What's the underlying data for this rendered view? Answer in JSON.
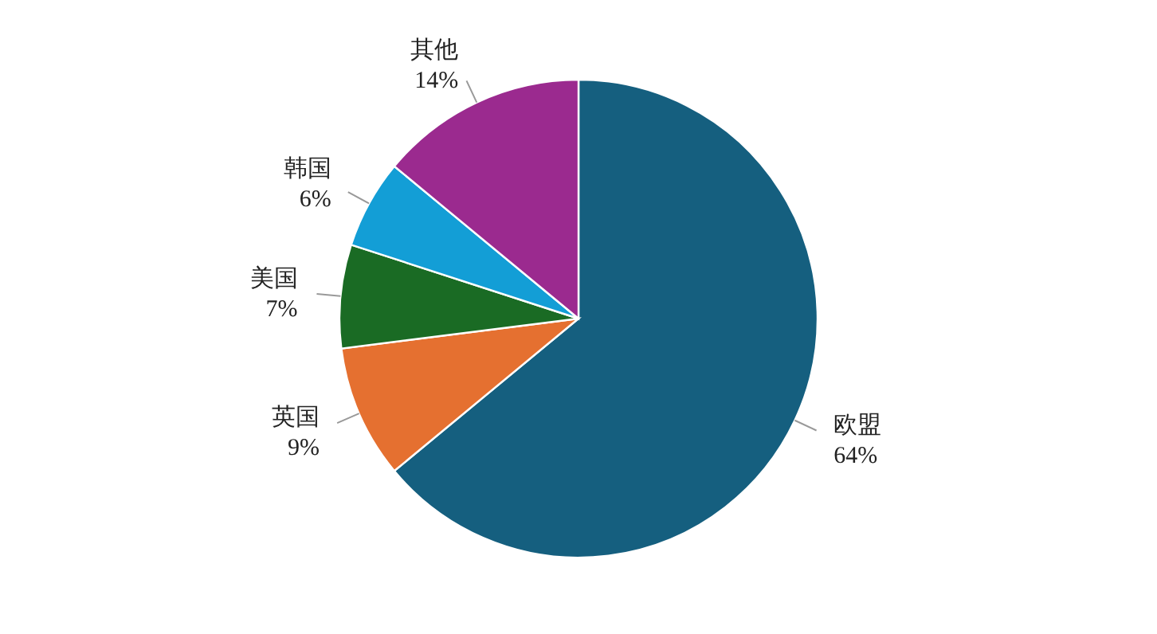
{
  "chart_data": {
    "type": "pie",
    "categories": [
      "欧盟",
      "英国",
      "美国",
      "韩国",
      "其他"
    ],
    "values": [
      64,
      9,
      7,
      6,
      14
    ],
    "colors": [
      "#155f7f",
      "#e57030",
      "#1a6b24",
      "#139ed6",
      "#9b2a8f"
    ],
    "value_labels": [
      "64%",
      "9%",
      "7%",
      "6%",
      "14%"
    ]
  }
}
